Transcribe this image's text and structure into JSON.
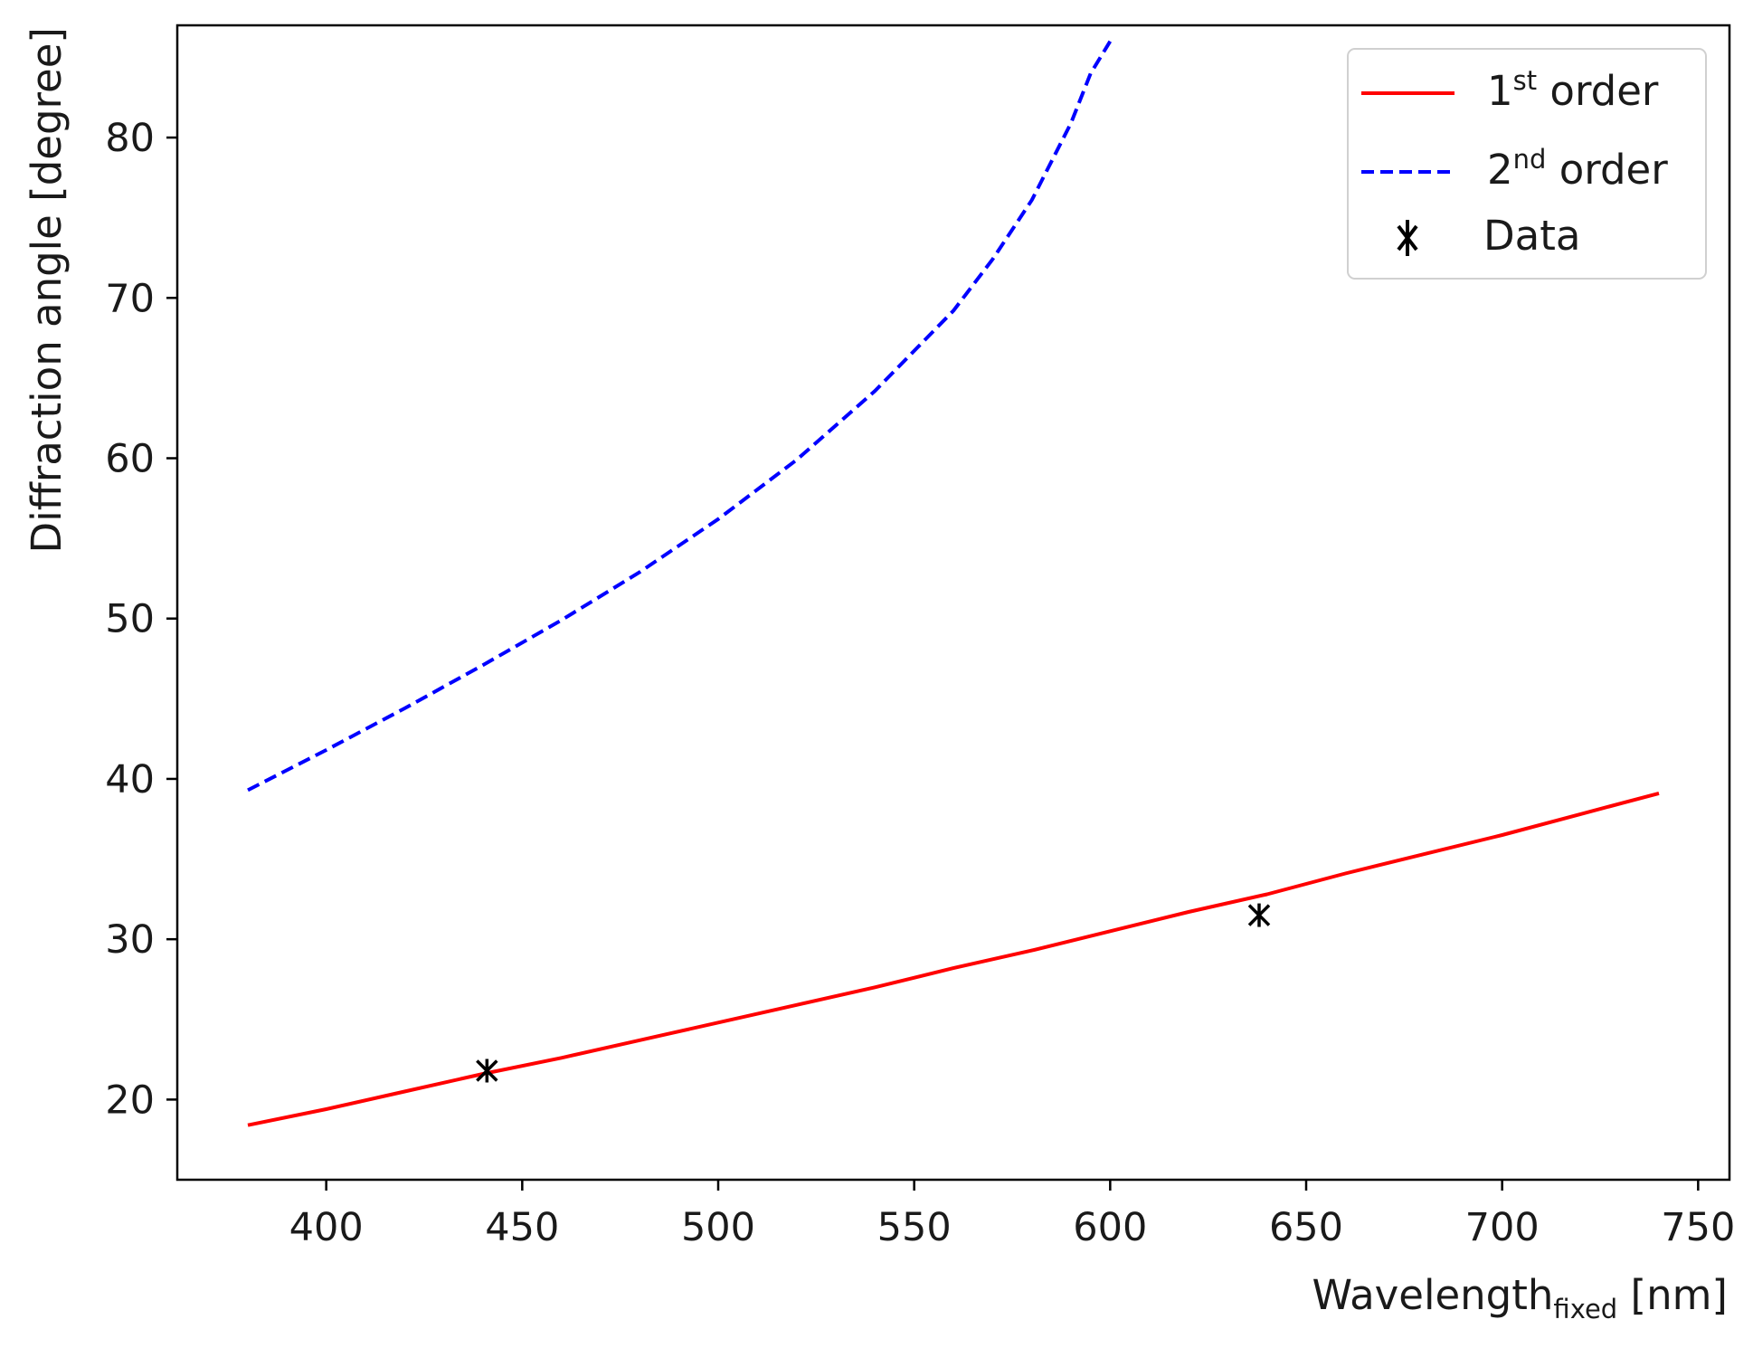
{
  "chart_data": {
    "type": "line",
    "title": "",
    "xlabel": {
      "main": "Wavelength",
      "subscript": "fixed",
      "unit": " [nm]"
    },
    "ylabel": "Diffraction angle [degree]",
    "xlim": [
      362,
      758
    ],
    "ylim": [
      15,
      87
    ],
    "x_ticks": [
      400,
      450,
      500,
      550,
      600,
      650,
      700,
      750
    ],
    "y_ticks": [
      20,
      30,
      40,
      50,
      60,
      70,
      80
    ],
    "grid": false,
    "legend_position": "top-right",
    "series": [
      {
        "name": {
          "main": "1",
          "sup": "st",
          "rest": " order"
        },
        "style": "solid",
        "color": "#ff0000",
        "x": [
          380,
          400,
          420,
          440,
          460,
          480,
          500,
          520,
          540,
          560,
          580,
          600,
          620,
          640,
          660,
          680,
          700,
          720,
          740
        ],
        "y": [
          18.4,
          19.4,
          20.5,
          21.6,
          22.6,
          23.7,
          24.8,
          25.9,
          27.0,
          28.2,
          29.3,
          30.5,
          31.7,
          32.8,
          34.1,
          35.3,
          36.5,
          37.8,
          39.1
        ]
      },
      {
        "name": {
          "main": "2",
          "sup": "nd",
          "rest": " order"
        },
        "style": "dashed",
        "color": "#0000ff",
        "x": [
          380,
          400,
          420,
          440,
          460,
          480,
          500,
          520,
          540,
          560,
          570,
          580,
          590,
          595,
          600
        ],
        "y": [
          39.3,
          41.8,
          44.4,
          47.1,
          49.9,
          52.9,
          56.2,
          59.9,
          64.2,
          69.2,
          72.4,
          76.1,
          80.9,
          84.0,
          86.0
        ]
      }
    ],
    "data_points": {
      "name": "Data",
      "marker": "x",
      "color": "#000000",
      "x": [
        441,
        638
      ],
      "y": [
        21.8,
        31.5
      ]
    }
  }
}
